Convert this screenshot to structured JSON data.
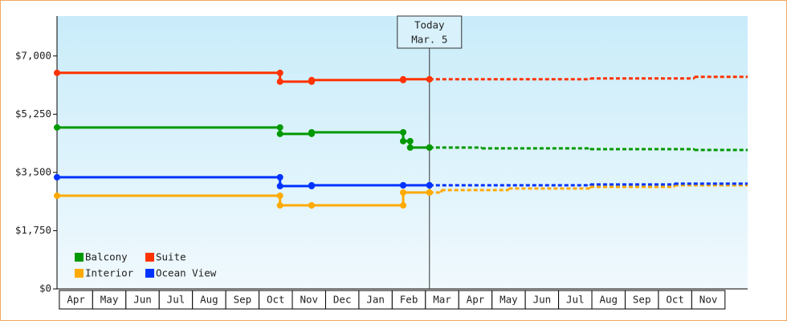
{
  "chart_data": {
    "type": "step",
    "months": [
      "Apr",
      "May",
      "Jun",
      "Jul",
      "Aug",
      "Sep",
      "Oct",
      "Nov",
      "Dec",
      "Jan",
      "Feb",
      "Mar",
      "Apr",
      "May",
      "Jun",
      "Jul",
      "Aug",
      "Sep",
      "Oct",
      "Nov"
    ],
    "xlim": [
      -0.07,
      20.68
    ],
    "ylim": [
      0,
      8200
    ],
    "yticks": [
      {
        "value": 0,
        "label": "$0"
      },
      {
        "value": 1750,
        "label": "$1,750"
      },
      {
        "value": 3500,
        "label": "$3,500"
      },
      {
        "value": 5250,
        "label": "$5,250"
      },
      {
        "value": 7000,
        "label": "$7,000"
      }
    ],
    "annotation": {
      "label": [
        "Today",
        "Mar. 5"
      ],
      "x": 11.12
    },
    "series": [
      {
        "name": "Balcony",
        "color": "#009900",
        "x": [
          -0.07,
          6.63,
          7.58,
          10.33,
          10.54,
          11.12
        ],
        "values": [
          4852,
          4659,
          4707,
          4441,
          4248,
          4248
        ],
        "forecast_x": [
          11.12,
          12.69,
          15.95,
          19.08
        ],
        "forecast_values": [
          4248,
          4224,
          4200,
          4176
        ]
      },
      {
        "name": "Suite",
        "color": "#ff3300",
        "x": [
          -0.07,
          6.63,
          7.58,
          10.33,
          11.12
        ],
        "values": [
          6493,
          6228,
          6276,
          6300,
          6300
        ],
        "forecast_x": [
          11.12,
          15.95,
          19.08
        ],
        "forecast_values": [
          6300,
          6324,
          6372
        ]
      },
      {
        "name": "Interior",
        "color": "#ffaa00",
        "x": [
          -0.07,
          6.63,
          7.58,
          10.33,
          11.12
        ],
        "values": [
          2800,
          2510,
          2510,
          2897,
          2897
        ],
        "forecast_x": [
          11.12,
          11.48,
          13.5,
          15.95,
          18.48
        ],
        "forecast_values": [
          2897,
          2970,
          3018,
          3066,
          3114
        ]
      },
      {
        "name": "Ocean View",
        "color": "#0033ff",
        "x": [
          -0.07,
          6.63,
          7.58,
          10.33,
          11.12
        ],
        "values": [
          3355,
          3090,
          3114,
          3114,
          3114
        ],
        "forecast_x": [
          11.12,
          15.95,
          18.48
        ],
        "forecast_values": [
          3114,
          3138,
          3162
        ]
      }
    ]
  }
}
